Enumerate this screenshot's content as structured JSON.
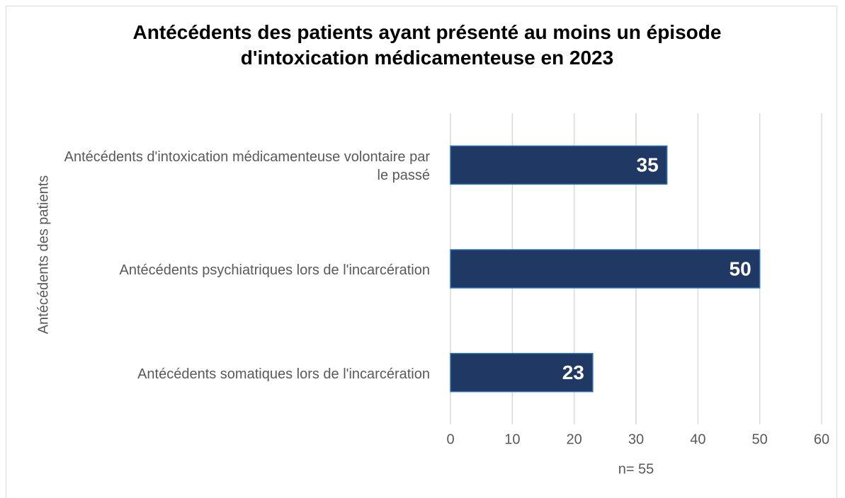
{
  "chart_data": {
    "type": "bar",
    "orientation": "horizontal",
    "title": "Antécédents des patients ayant présenté au moins un épisode d'intoxication médicamenteuse en 2023",
    "y_label": "Antécédents des patients",
    "x_label": "n= 55",
    "categories": [
      "Antécédents d'intoxication médicamenteuse volontaire par le passé",
      "Antécédents psychiatriques lors de l'incarcération",
      "Antécédents somatiques lors de l'incarcération"
    ],
    "values": [
      35,
      50,
      23
    ],
    "color": "#203864",
    "xlim": [
      0,
      60
    ],
    "xticks": [
      0,
      10,
      20,
      30,
      40,
      50,
      60
    ],
    "grid": true
  }
}
